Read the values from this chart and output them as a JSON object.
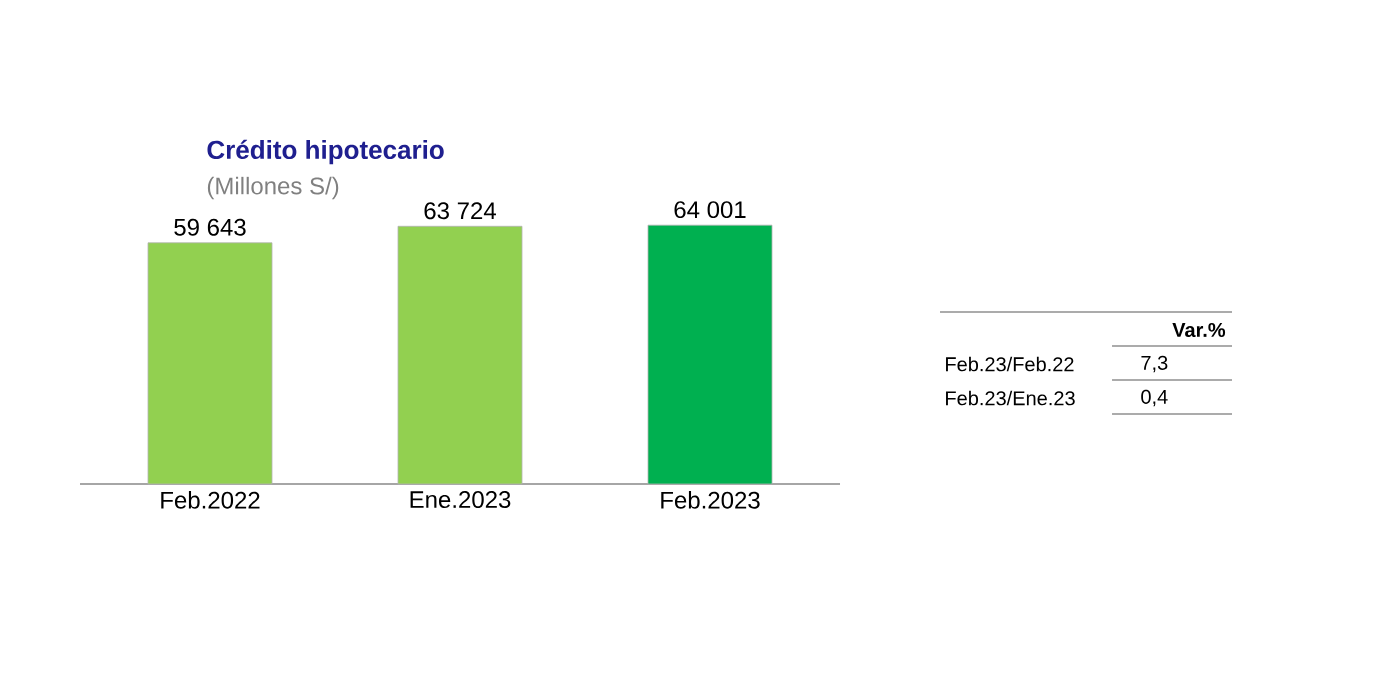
{
  "chart_data": {
    "type": "bar",
    "title": "Crédito hipotecario",
    "subtitle": "(Millones S/)",
    "categories": [
      "Feb.2022",
      "Ene.2023",
      "Feb.2023"
    ],
    "values": [
      59643,
      63724,
      64001
    ],
    "colors": [
      "#92d050",
      "#92d050",
      "#00b050"
    ],
    "value_labels": [
      "59 643",
      "63 724",
      "64 001"
    ],
    "tick_labels": "x",
    "annotations": [
      "Var.%",
      "Feb.23/Feb.22",
      "7,3",
      "Feb.23/Ene.23",
      "0,4"
    ]
  }
}
